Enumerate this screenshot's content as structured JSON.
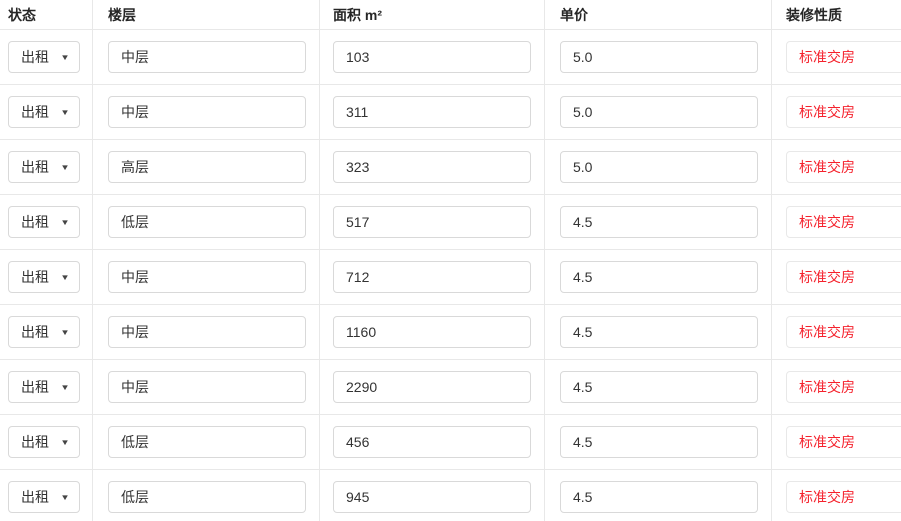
{
  "header": {
    "status": "状态",
    "floor": "楼层",
    "area": "面积 m²",
    "price": "单价",
    "decoration": "装修性质"
  },
  "rows": [
    {
      "status": "出租",
      "floor": "中层",
      "area": "103",
      "price": "5.0",
      "decoration": "标准交房"
    },
    {
      "status": "出租",
      "floor": "中层",
      "area": "311",
      "price": "5.0",
      "decoration": "标准交房"
    },
    {
      "status": "出租",
      "floor": "高层",
      "area": "323",
      "price": "5.0",
      "decoration": "标准交房"
    },
    {
      "status": "出租",
      "floor": "低层",
      "area": "517",
      "price": "4.5",
      "decoration": "标准交房"
    },
    {
      "status": "出租",
      "floor": "中层",
      "area": "712",
      "price": "4.5",
      "decoration": "标准交房"
    },
    {
      "status": "出租",
      "floor": "中层",
      "area": "1160",
      "price": "4.5",
      "decoration": "标准交房"
    },
    {
      "status": "出租",
      "floor": "中层",
      "area": "2290",
      "price": "4.5",
      "decoration": "标准交房"
    },
    {
      "status": "出租",
      "floor": "低层",
      "area": "456",
      "price": "4.5",
      "decoration": "标准交房"
    },
    {
      "status": "出租",
      "floor": "低层",
      "area": "945",
      "price": "4.5",
      "decoration": "标准交房"
    }
  ],
  "icons": {
    "chevron_down": "▼"
  },
  "colors": {
    "accent_red": "#f5222d",
    "input_border": "#d9d9d9",
    "divider": "#e8e8e8"
  }
}
